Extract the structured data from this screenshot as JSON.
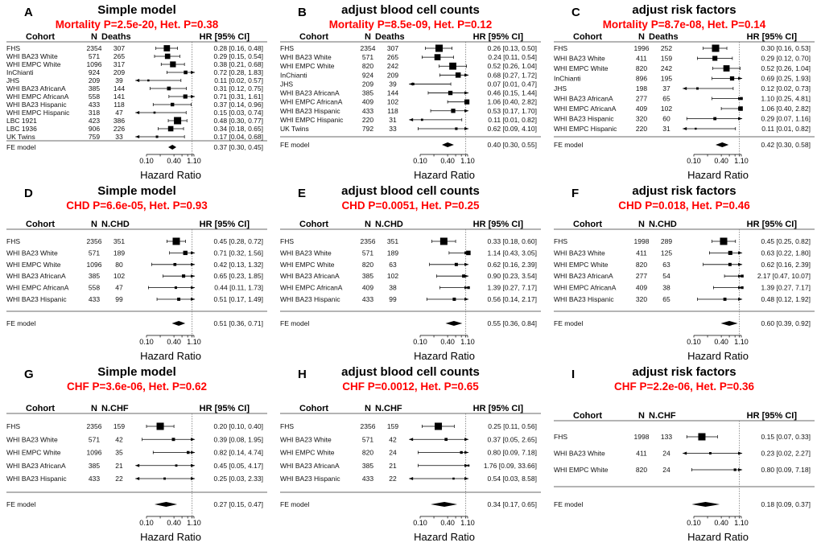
{
  "axis": {
    "label": "Hazard Ratio",
    "ticks": [
      "0.10",
      "0.40",
      "1.10"
    ],
    "scale": "log",
    "reference_line": 1,
    "xlim": [
      0.1,
      1.1
    ]
  },
  "chart_data": [
    {
      "type": "forest",
      "letter": "A",
      "title": "Simple model",
      "subtitle": "Mortality P=2.5e-20, Het. P=0.38",
      "headers": {
        "cohort": "Cohort",
        "n": "N",
        "events": "Deaths",
        "hr": "HR [95% CI]"
      },
      "studies": [
        {
          "cohort": "FHS",
          "n": "2354",
          "events": "307",
          "hr": 0.28,
          "lo": 0.16,
          "hi": 0.48
        },
        {
          "cohort": "WHI BA23 White",
          "n": "571",
          "events": "265",
          "hr": 0.29,
          "lo": 0.15,
          "hi": 0.54
        },
        {
          "cohort": "WHI EMPC White",
          "n": "1096",
          "events": "317",
          "hr": 0.38,
          "lo": 0.21,
          "hi": 0.68
        },
        {
          "cohort": "InChianti",
          "n": "924",
          "events": "209",
          "hr": 0.72,
          "lo": 0.28,
          "hi": 1.83
        },
        {
          "cohort": "JHS",
          "n": "209",
          "events": "39",
          "hr": 0.11,
          "lo": 0.02,
          "hi": 0.57
        },
        {
          "cohort": "WHI BA23 AfricanA",
          "n": "385",
          "events": "144",
          "hr": 0.31,
          "lo": 0.12,
          "hi": 0.75
        },
        {
          "cohort": "WHI EMPC AfricanA",
          "n": "558",
          "events": "141",
          "hr": 0.71,
          "lo": 0.31,
          "hi": 1.61
        },
        {
          "cohort": "WHI BA23 Hispanic",
          "n": "433",
          "events": "118",
          "hr": 0.37,
          "lo": 0.14,
          "hi": 0.96
        },
        {
          "cohort": "WHI EMPC Hispanic",
          "n": "318",
          "events": "47",
          "hr": 0.15,
          "lo": 0.03,
          "hi": 0.74
        },
        {
          "cohort": "LBC 1921",
          "n": "423",
          "events": "386",
          "hr": 0.48,
          "lo": 0.3,
          "hi": 0.77
        },
        {
          "cohort": "LBC 1936",
          "n": "906",
          "events": "226",
          "hr": 0.34,
          "lo": 0.18,
          "hi": 0.65
        },
        {
          "cohort": "UK Twins",
          "n": "759",
          "events": "33",
          "hr": 0.17,
          "lo": 0.04,
          "hi": 0.68
        }
      ],
      "fe": {
        "label": "FE model",
        "hr": 0.37,
        "lo": 0.3,
        "hi": 0.45
      }
    },
    {
      "type": "forest",
      "letter": "B",
      "title": "adjust blood cell counts",
      "subtitle": "Mortality P=8.5e-09, Het. P=0.12",
      "headers": {
        "cohort": "Cohort",
        "n": "N",
        "events": "Deaths",
        "hr": "HR [95% CI]"
      },
      "studies": [
        {
          "cohort": "FHS",
          "n": "2354",
          "events": "307",
          "hr": 0.26,
          "lo": 0.13,
          "hi": 0.5
        },
        {
          "cohort": "WHI BA23 White",
          "n": "571",
          "events": "265",
          "hr": 0.24,
          "lo": 0.11,
          "hi": 0.54
        },
        {
          "cohort": "WHI EMPC White",
          "n": "820",
          "events": "242",
          "hr": 0.52,
          "lo": 0.26,
          "hi": 1.04
        },
        {
          "cohort": "InChianti",
          "n": "924",
          "events": "209",
          "hr": 0.68,
          "lo": 0.27,
          "hi": 1.72
        },
        {
          "cohort": "JHS",
          "n": "209",
          "events": "39",
          "hr": 0.07,
          "lo": 0.01,
          "hi": 0.47
        },
        {
          "cohort": "WHI BA23 AfricanA",
          "n": "385",
          "events": "144",
          "hr": 0.46,
          "lo": 0.15,
          "hi": 1.44
        },
        {
          "cohort": "WHI EMPC AfricanA",
          "n": "409",
          "events": "102",
          "hr": 1.06,
          "lo": 0.4,
          "hi": 2.82
        },
        {
          "cohort": "WHI BA23 Hispanic",
          "n": "433",
          "events": "118",
          "hr": 0.53,
          "lo": 0.17,
          "hi": 1.7
        },
        {
          "cohort": "WHI EMPC Hispanic",
          "n": "220",
          "events": "31",
          "hr": 0.11,
          "lo": 0.01,
          "hi": 0.82
        },
        {
          "cohort": "UK Twins",
          "n": "792",
          "events": "33",
          "hr": 0.62,
          "lo": 0.09,
          "hi": 4.1
        }
      ],
      "fe": {
        "label": "FE model",
        "hr": 0.4,
        "lo": 0.3,
        "hi": 0.55
      }
    },
    {
      "type": "forest",
      "letter": "C",
      "title": "adjust risk factors",
      "subtitle": "Mortality P=8.7e-08, Het. P=0.14",
      "headers": {
        "cohort": "Cohort",
        "n": "N",
        "events": "Deaths",
        "hr": "HR [95% CI]"
      },
      "studies": [
        {
          "cohort": "FHS",
          "n": "1996",
          "events": "252",
          "hr": 0.3,
          "lo": 0.16,
          "hi": 0.53
        },
        {
          "cohort": "WHI BA23 White",
          "n": "411",
          "events": "159",
          "hr": 0.29,
          "lo": 0.12,
          "hi": 0.7
        },
        {
          "cohort": "WHI EMPC White",
          "n": "820",
          "events": "242",
          "hr": 0.52,
          "lo": 0.26,
          "hi": 1.04
        },
        {
          "cohort": "InChianti",
          "n": "896",
          "events": "195",
          "hr": 0.69,
          "lo": 0.25,
          "hi": 1.93
        },
        {
          "cohort": "JHS",
          "n": "198",
          "events": "37",
          "hr": 0.12,
          "lo": 0.02,
          "hi": 0.73
        },
        {
          "cohort": "WHI BA23 AfricanA",
          "n": "277",
          "events": "65",
          "hr": 1.1,
          "lo": 0.25,
          "hi": 4.81
        },
        {
          "cohort": "WHI EMPC AfricanA",
          "n": "409",
          "events": "102",
          "hr": 1.06,
          "lo": 0.4,
          "hi": 2.82
        },
        {
          "cohort": "WHI BA23 Hispanic",
          "n": "320",
          "events": "60",
          "hr": 0.29,
          "lo": 0.07,
          "hi": 1.16
        },
        {
          "cohort": "WHI EMPC Hispanic",
          "n": "220",
          "events": "31",
          "hr": 0.11,
          "lo": 0.01,
          "hi": 0.82
        }
      ],
      "fe": {
        "label": "FE model",
        "hr": 0.42,
        "lo": 0.3,
        "hi": 0.58
      }
    },
    {
      "type": "forest",
      "letter": "D",
      "title": "Simple model",
      "subtitle": "CHD P=6.6e-05, Het. P=0.93",
      "headers": {
        "cohort": "Cohort",
        "n": "N",
        "events": "N.CHD",
        "hr": "HR [95% CI]"
      },
      "studies": [
        {
          "cohort": "FHS",
          "n": "2356",
          "events": "351",
          "hr": 0.45,
          "lo": 0.28,
          "hi": 0.72
        },
        {
          "cohort": "WHI BA23 White",
          "n": "571",
          "events": "189",
          "hr": 0.71,
          "lo": 0.32,
          "hi": 1.56
        },
        {
          "cohort": "WHI EMPC White",
          "n": "1096",
          "events": "80",
          "hr": 0.42,
          "lo": 0.13,
          "hi": 1.32
        },
        {
          "cohort": "WHI BA23 AfricanA",
          "n": "385",
          "events": "102",
          "hr": 0.65,
          "lo": 0.23,
          "hi": 1.85
        },
        {
          "cohort": "WHI EMPC AfricanA",
          "n": "558",
          "events": "47",
          "hr": 0.44,
          "lo": 0.11,
          "hi": 1.73
        },
        {
          "cohort": "WHI BA23 Hispanic",
          "n": "433",
          "events": "99",
          "hr": 0.51,
          "lo": 0.17,
          "hi": 1.49
        }
      ],
      "fe": {
        "label": "FE model",
        "hr": 0.51,
        "lo": 0.36,
        "hi": 0.71
      }
    },
    {
      "type": "forest",
      "letter": "E",
      "title": "adjust blood cell counts",
      "subtitle": "CHD P=0.0051, Het. P=0.25",
      "headers": {
        "cohort": "Cohort",
        "n": "N",
        "events": "N.CHD",
        "hr": "HR [95% CI]"
      },
      "studies": [
        {
          "cohort": "FHS",
          "n": "2356",
          "events": "351",
          "hr": 0.33,
          "lo": 0.18,
          "hi": 0.6
        },
        {
          "cohort": "WHI BA23 White",
          "n": "571",
          "events": "189",
          "hr": 1.14,
          "lo": 0.43,
          "hi": 3.05
        },
        {
          "cohort": "WHI EMPC White",
          "n": "820",
          "events": "63",
          "hr": 0.62,
          "lo": 0.16,
          "hi": 2.39
        },
        {
          "cohort": "WHI BA23 AfricanA",
          "n": "385",
          "events": "102",
          "hr": 0.9,
          "lo": 0.23,
          "hi": 3.54
        },
        {
          "cohort": "WHI EMPC AfricanA",
          "n": "409",
          "events": "38",
          "hr": 1.39,
          "lo": 0.27,
          "hi": 7.17
        },
        {
          "cohort": "WHI BA23 Hispanic",
          "n": "433",
          "events": "99",
          "hr": 0.56,
          "lo": 0.14,
          "hi": 2.17
        }
      ],
      "fe": {
        "label": "FE model",
        "hr": 0.55,
        "lo": 0.36,
        "hi": 0.84
      }
    },
    {
      "type": "forest",
      "letter": "F",
      "title": "adjust risk factors",
      "subtitle": "CHD P=0.018, Het. P=0.46",
      "headers": {
        "cohort": "Cohort",
        "n": "N",
        "events": "N.CHD",
        "hr": "HR [95% CI]"
      },
      "studies": [
        {
          "cohort": "FHS",
          "n": "1998",
          "events": "289",
          "hr": 0.45,
          "lo": 0.25,
          "hi": 0.82
        },
        {
          "cohort": "WHI BA23 White",
          "n": "411",
          "events": "125",
          "hr": 0.63,
          "lo": 0.22,
          "hi": 1.8
        },
        {
          "cohort": "WHI EMPC White",
          "n": "820",
          "events": "63",
          "hr": 0.62,
          "lo": 0.16,
          "hi": 2.39
        },
        {
          "cohort": "WHI BA23 AfricanA",
          "n": "277",
          "events": "54",
          "hr": 2.17,
          "lo": 0.47,
          "hi": 10.07
        },
        {
          "cohort": "WHI EMPC AfricanA",
          "n": "409",
          "events": "38",
          "hr": 1.39,
          "lo": 0.27,
          "hi": 7.17
        },
        {
          "cohort": "WHI BA23 Hispanic",
          "n": "320",
          "events": "65",
          "hr": 0.48,
          "lo": 0.12,
          "hi": 1.92
        }
      ],
      "fe": {
        "label": "FE model",
        "hr": 0.6,
        "lo": 0.39,
        "hi": 0.92
      }
    },
    {
      "type": "forest",
      "letter": "G",
      "title": "Simple model",
      "subtitle": "CHF P=3.6e-06, Het. P=0.62",
      "headers": {
        "cohort": "Cohort",
        "n": "N",
        "events": "N.CHF",
        "hr": "HR [95% CI]"
      },
      "studies": [
        {
          "cohort": "FHS",
          "n": "2356",
          "events": "159",
          "hr": 0.2,
          "lo": 0.1,
          "hi": 0.4
        },
        {
          "cohort": "WHI BA23 White",
          "n": "571",
          "events": "42",
          "hr": 0.39,
          "lo": 0.08,
          "hi": 1.95
        },
        {
          "cohort": "WHI EMPC White",
          "n": "1096",
          "events": "35",
          "hr": 0.82,
          "lo": 0.14,
          "hi": 4.74
        },
        {
          "cohort": "WHI BA23 AfricanA",
          "n": "385",
          "events": "21",
          "hr": 0.45,
          "lo": 0.05,
          "hi": 4.17
        },
        {
          "cohort": "WHI BA23 Hispanic",
          "n": "433",
          "events": "22",
          "hr": 0.25,
          "lo": 0.03,
          "hi": 2.33
        }
      ],
      "fe": {
        "label": "FE model",
        "hr": 0.27,
        "lo": 0.15,
        "hi": 0.47
      }
    },
    {
      "type": "forest",
      "letter": "H",
      "title": "adjust blood cell counts",
      "subtitle": "CHF P=0.0012, Het. P=0.65",
      "headers": {
        "cohort": "Cohort",
        "n": "N",
        "events": "N.CHF",
        "hr": "HR [95% CI]"
      },
      "studies": [
        {
          "cohort": "FHS",
          "n": "2356",
          "events": "159",
          "hr": 0.25,
          "lo": 0.11,
          "hi": 0.56
        },
        {
          "cohort": "WHI BA23 White",
          "n": "571",
          "events": "42",
          "hr": 0.37,
          "lo": 0.05,
          "hi": 2.65
        },
        {
          "cohort": "WHI EMPC White",
          "n": "820",
          "events": "24",
          "hr": 0.8,
          "lo": 0.09,
          "hi": 7.18
        },
        {
          "cohort": "WHI BA23 AfricanA",
          "n": "385",
          "events": "21",
          "hr": 1.76,
          "lo": 0.09,
          "hi": 33.66
        },
        {
          "cohort": "WHI BA23 Hispanic",
          "n": "433",
          "events": "22",
          "hr": 0.54,
          "lo": 0.03,
          "hi": 8.58
        }
      ],
      "fe": {
        "label": "FE model",
        "hr": 0.34,
        "lo": 0.17,
        "hi": 0.65
      }
    },
    {
      "type": "forest",
      "letter": "I",
      "title": "adjust risk factors",
      "subtitle": "CHF P=2.2e-06, Het. P=0.36",
      "headers": {
        "cohort": "Cohort",
        "n": "N",
        "events": "N.CHF",
        "hr": "HR [95% CI]"
      },
      "studies": [
        {
          "cohort": "FHS",
          "n": "1998",
          "events": "133",
          "hr": 0.15,
          "lo": 0.07,
          "hi": 0.33
        },
        {
          "cohort": "WHI BA23 White",
          "n": "411",
          "events": "24",
          "hr": 0.23,
          "lo": 0.02,
          "hi": 2.27
        },
        {
          "cohort": "WHI EMPC White",
          "n": "820",
          "events": "24",
          "hr": 0.8,
          "lo": 0.09,
          "hi": 7.18
        }
      ],
      "fe": {
        "label": "FE model",
        "hr": 0.18,
        "lo": 0.09,
        "hi": 0.37
      }
    }
  ]
}
